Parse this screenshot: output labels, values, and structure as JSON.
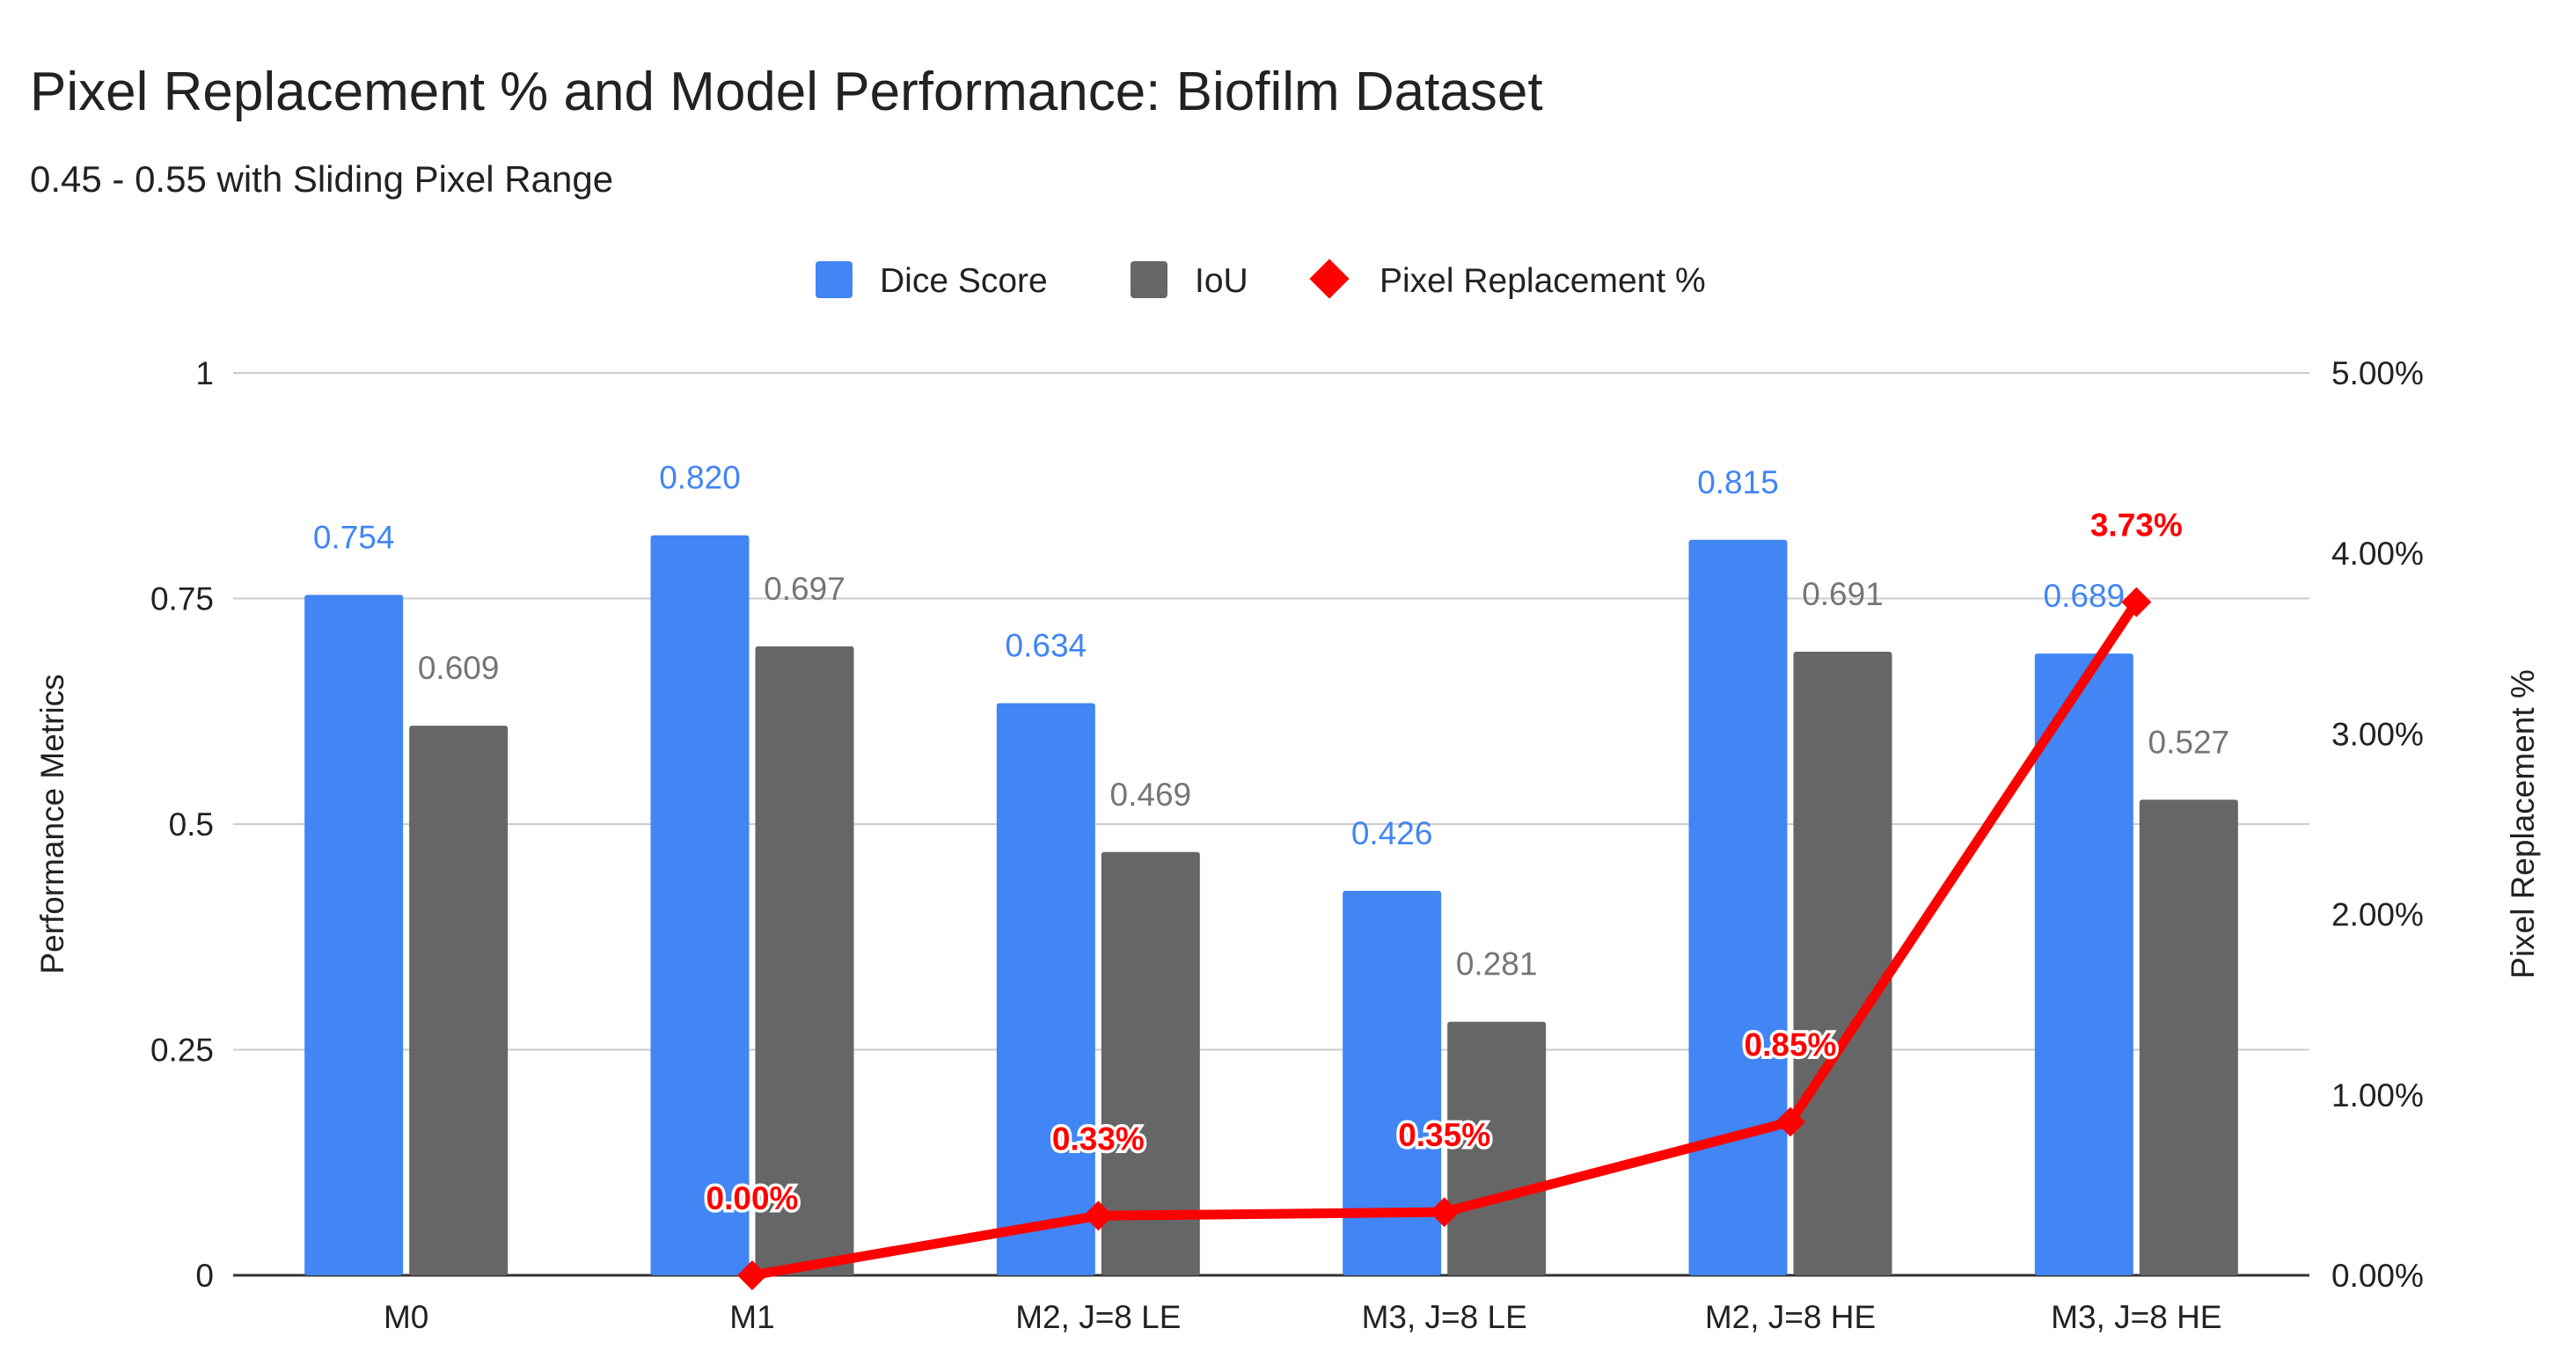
{
  "chart_data": {
    "type": "bar",
    "title": "Pixel Replacement % and Model Performance: Biofilm Dataset",
    "subtitle": "0.45 - 0.55 with Sliding Pixel Range",
    "categories": [
      "M0",
      "M1",
      "M2, J=8 LE",
      "M3, J=8 LE",
      "M2, J=8 HE",
      "M3, J=8 HE"
    ],
    "series": [
      {
        "name": "Dice Score",
        "type": "bar",
        "axis": "left",
        "color": "#4285f4",
        "values": [
          0.754,
          0.82,
          0.634,
          0.426,
          0.815,
          0.689
        ],
        "labels": [
          "0.754",
          "0.820",
          "0.634",
          "0.426",
          "0.815",
          "0.689"
        ]
      },
      {
        "name": "IoU",
        "type": "bar",
        "axis": "left",
        "color": "#666666",
        "values": [
          0.609,
          0.697,
          0.469,
          0.281,
          0.691,
          0.527
        ],
        "labels": [
          "0.609",
          "0.697",
          "0.469",
          "0.281",
          "0.691",
          "0.527"
        ]
      },
      {
        "name": "Pixel Replacement %",
        "type": "line",
        "axis": "right",
        "color": "#ff0000",
        "values": [
          null,
          0.0,
          0.33,
          0.35,
          0.85,
          3.73
        ],
        "labels": [
          null,
          "0.00%",
          "0.33%",
          "0.35%",
          "0.85%",
          "3.73%"
        ]
      }
    ],
    "left_axis": {
      "label": "Performance Metrics",
      "range": [
        0,
        1
      ],
      "ticks": [
        0,
        0.25,
        0.5,
        0.75,
        1
      ],
      "tick_labels": [
        "0",
        "0.25",
        "0.5",
        "0.75",
        "1"
      ]
    },
    "right_axis": {
      "label": "Pixel Replacement %",
      "range": [
        0,
        5
      ],
      "ticks": [
        0,
        1,
        2,
        3,
        4,
        5
      ],
      "tick_labels": [
        "0.00%",
        "1.00%",
        "2.00%",
        "3.00%",
        "4.00%",
        "5.00%"
      ]
    },
    "grid": true,
    "legend_position": "top-center"
  }
}
